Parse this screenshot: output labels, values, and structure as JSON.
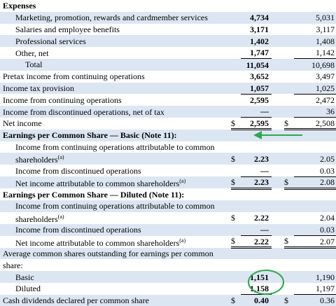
{
  "rows": [
    {
      "label": "Expenses"
    },
    {
      "label": "Marketing, promotion, rewards and cardmember services",
      "current": "4,734",
      "prior": "5,031"
    },
    {
      "label": "Salaries and employee benefits",
      "current": "3,171",
      "prior": "3,117"
    },
    {
      "label": "Professional services",
      "current": "1,402",
      "prior": "1,408"
    },
    {
      "label": "Other, net",
      "current": "1,747",
      "prior": "1,142"
    },
    {
      "label": "Total",
      "current": "11,054",
      "prior": "10,698"
    },
    {
      "label": "Pretax income from continuing operations",
      "current": "3,652",
      "prior": "3,497"
    },
    {
      "label": "Income tax provision",
      "current": "1,057",
      "prior": "1,025"
    },
    {
      "label": "Income from continuing operations",
      "current": "2,595",
      "prior": "2,472"
    },
    {
      "label": "Income from discontinued operations, net of tax",
      "current": "—",
      "prior": "36"
    },
    {
      "label": "Net income",
      "currency_current": "$",
      "current": "2,595",
      "currency_prior": "$",
      "prior": "2,508"
    },
    {
      "label": "Earnings per Common Share — Basic (Note 11):"
    },
    {
      "label": "Income from continuing operations attributable to common"
    },
    {
      "label": "shareholders",
      "note": "(a)",
      "currency_current": "$",
      "current": "2.23",
      "prior": "2.05"
    },
    {
      "label": "Income from discontinued operations",
      "current": "—",
      "prior": "0.03"
    },
    {
      "label": "Net income attributable to common shareholders",
      "note": "(a)",
      "currency_current": "$",
      "current": "2.23",
      "currency_prior": "$",
      "prior": "2.08"
    },
    {
      "label": "Earnings per Common Share — Diluted (Note 11):"
    },
    {
      "label": "Income from continuing operations attributable to common"
    },
    {
      "label": "shareholders",
      "note": "(a)",
      "currency_current": "$",
      "current": "2.22",
      "prior": "2.04"
    },
    {
      "label": "Income from discontinued operations",
      "current": "—",
      "prior": "0.03"
    },
    {
      "label": "Net income attributable to common shareholders",
      "note": "(a)",
      "currency_current": "$",
      "current": "2.22",
      "currency_prior": "$",
      "prior": "2.07"
    },
    {
      "label": "Average common shares outstanding for earnings per common"
    },
    {
      "label": "share:"
    },
    {
      "label": "Basic",
      "current": "1,151",
      "prior": "1,190"
    },
    {
      "label": "Diluted",
      "current": "1,158",
      "prior": "1,197"
    },
    {
      "label": "Cash dividends declared per common share",
      "currency_current": "$",
      "current": "0.40",
      "currency_prior": "$",
      "prior": "0.36"
    }
  ]
}
